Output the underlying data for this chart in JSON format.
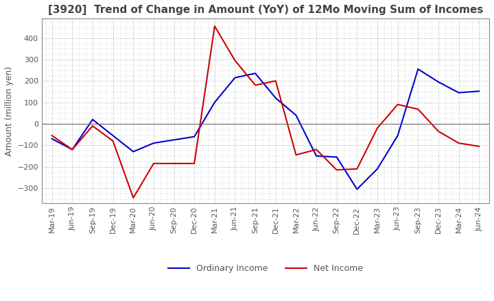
{
  "title": "[3920]  Trend of Change in Amount (YoY) of 12Mo Moving Sum of Incomes",
  "ylabel": "Amount (million yen)",
  "ylim": [
    -370,
    490
  ],
  "yticks": [
    -300,
    -200,
    -100,
    0,
    100,
    200,
    300,
    400
  ],
  "x_labels": [
    "Mar-19",
    "Jun-19",
    "Sep-19",
    "Dec-19",
    "Mar-20",
    "Jun-20",
    "Sep-20",
    "Dec-20",
    "Mar-21",
    "Jun-21",
    "Sep-21",
    "Dec-21",
    "Mar-22",
    "Jun-22",
    "Sep-22",
    "Dec-22",
    "Mar-23",
    "Jun-23",
    "Sep-23",
    "Dec-23",
    "Mar-24",
    "Jun-24"
  ],
  "ordinary_income": [
    -70,
    -120,
    20,
    -55,
    -130,
    -90,
    -75,
    -60,
    100,
    215,
    235,
    120,
    40,
    -150,
    -155,
    -305,
    -210,
    -55,
    255,
    195,
    145,
    152
  ],
  "net_income": [
    -55,
    -120,
    -10,
    -80,
    -345,
    -185,
    -185,
    -185,
    455,
    295,
    180,
    200,
    -145,
    -120,
    -215,
    -210,
    -20,
    90,
    68,
    -35,
    -90,
    -105
  ],
  "ordinary_color": "#0000cc",
  "net_color": "#cc0000",
  "title_fontsize": 11,
  "label_fontsize": 9,
  "tick_fontsize": 8,
  "legend_fontsize": 9,
  "background_color": "#ffffff",
  "grid_color": "#aaaaaa",
  "minor_grid_color": "#cccccc"
}
